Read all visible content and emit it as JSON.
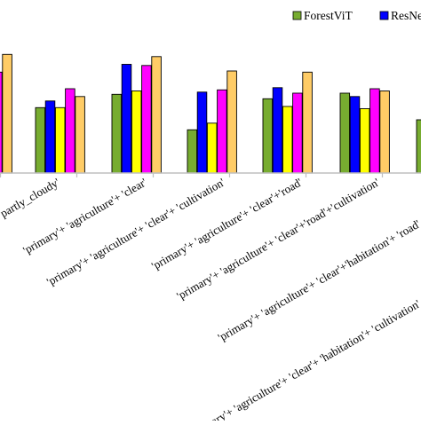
{
  "chart_data": {
    "type": "bar",
    "title": "",
    "xlabel": "",
    "ylabel": "",
    "categories": [
      "'partly_cloudy'",
      "'primary'+ 'agriculture'+ 'clear'",
      "'primary'+ 'agriculture'+ 'clear'+ 'cultivation'",
      "'primary'+ 'agriculture'+ 'clear'+'road'",
      "'primary'+ 'agriculture'+ 'clear'+'road'+'cultivation'",
      "'primary'+ 'agriculture'+ 'clear'+'habitation'+ 'road'",
      "'primary'+ 'agriculture'+ 'clear'+ 'habitation'+ 'cultivation'"
    ],
    "series": [
      {
        "name": "ForestViT",
        "color": "#77ac30",
        "values": [
          null,
          0.59,
          0.71,
          0.39,
          0.67,
          0.72,
          0.48
        ]
      },
      {
        "name": "ResNet",
        "color": "#0000ff",
        "values": [
          null,
          0.65,
          0.98,
          0.73,
          0.77,
          0.69,
          null
        ]
      },
      {
        "name": "",
        "color": "#ffff00",
        "values": [
          null,
          0.59,
          0.74,
          0.45,
          0.6,
          0.58,
          null
        ]
      },
      {
        "name": "",
        "color": "#ff00ff",
        "values": [
          0.91,
          0.76,
          0.97,
          0.75,
          0.72,
          0.76,
          null
        ]
      },
      {
        "name": "",
        "color": "#ffcc66",
        "values": [
          1.07,
          0.69,
          1.05,
          0.92,
          0.91,
          0.74,
          null
        ]
      }
    ],
    "ylim": [
      0,
      1.2
    ],
    "grid": false,
    "legend": "top-right"
  }
}
